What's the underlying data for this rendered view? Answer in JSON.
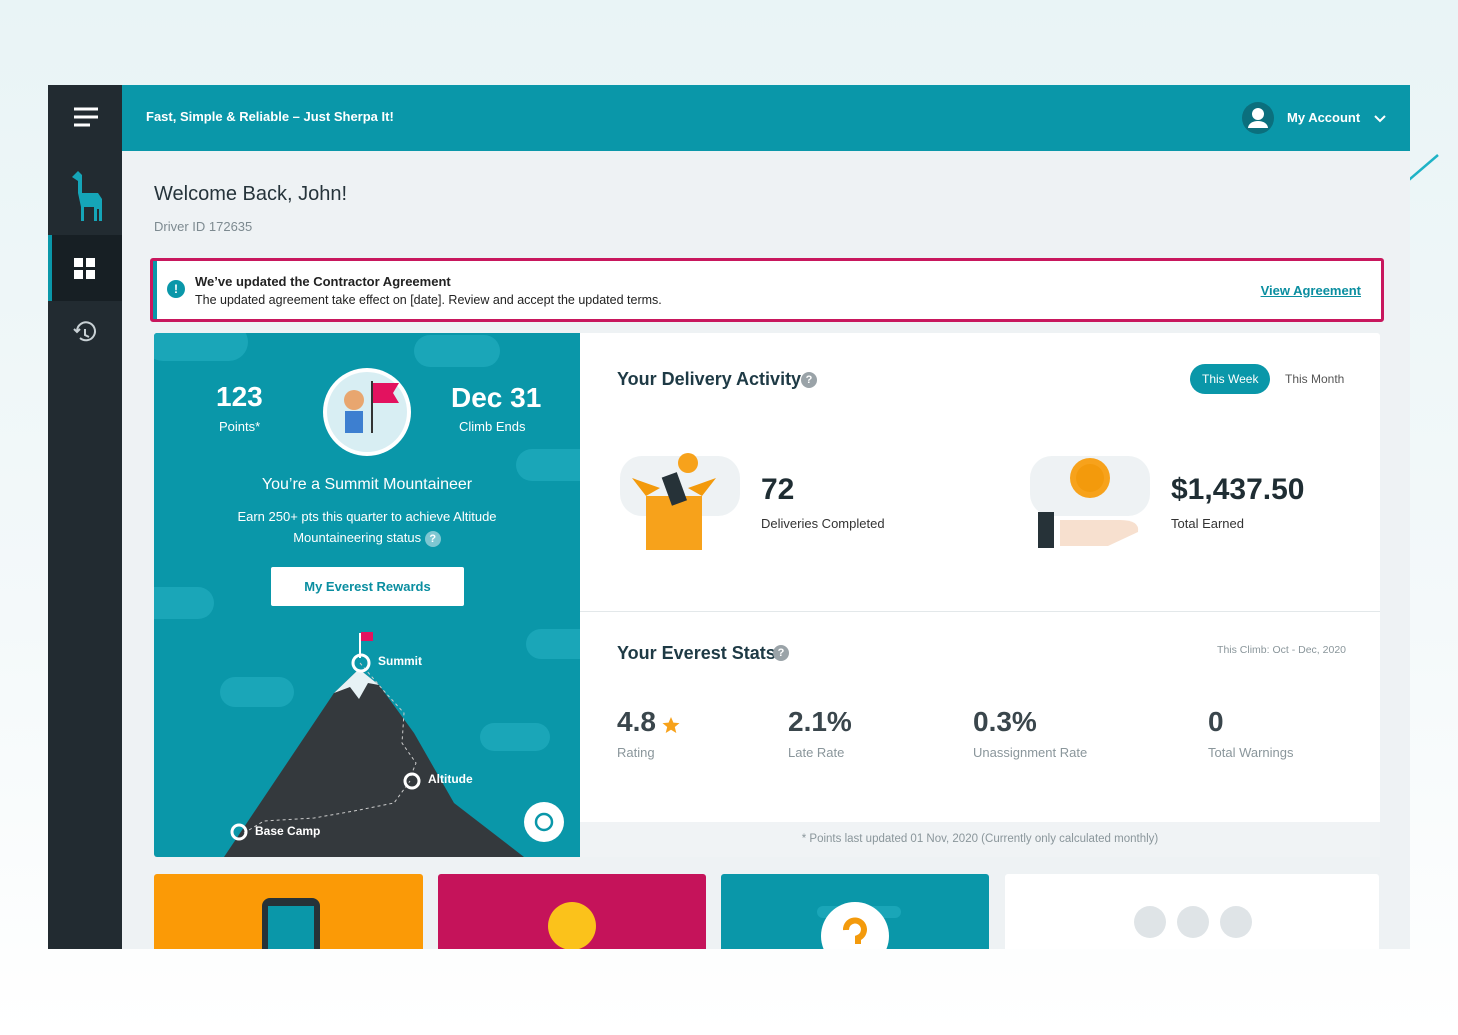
{
  "header": {
    "tagline": "Fast, Simple & Reliable – Just Sherpa It!",
    "account": "My Account"
  },
  "welcome": {
    "title": "Welcome Back, John!",
    "driver_id": "Driver ID 172635"
  },
  "notice": {
    "icon": "!",
    "title": "We’ve updated the Contractor Agreement",
    "body": "The updated agreement take effect on [date]. Review and accept the updated terms.",
    "link": "View Agreement"
  },
  "rank_card": {
    "points": "123",
    "points_label": "Points*",
    "date": "Dec 31",
    "date_label": "Climb Ends",
    "status": "You’re a Summit Mountaineer",
    "message": "Earn 250+ pts this quarter to achieve Altitude Mountaineering status",
    "help_icon": "?",
    "button": "My Everest Rewards",
    "levels": [
      "Summit",
      "Altitude",
      "Base Camp"
    ]
  },
  "delivery": {
    "title": "Your Delivery Activity",
    "help_icon": "?",
    "tabs": [
      "This Week",
      "This Month"
    ],
    "stats": [
      {
        "value": "72",
        "label": "Deliveries Completed"
      },
      {
        "value": "$1,437.50",
        "label": "Total Earned"
      }
    ]
  },
  "everest": {
    "title": "Your Everest Stats",
    "help_icon": "?",
    "period": "This Climb: Oct - Dec, 2020",
    "stats": [
      {
        "value": "4.8",
        "label": "Rating"
      },
      {
        "value": "2.1%",
        "label": "Late Rate"
      },
      {
        "value": "0.3%",
        "label": "Unassignment Rate"
      },
      {
        "value": "0",
        "label": "Total Warnings"
      }
    ],
    "footnote": "* Points last updated 01 Nov, 2020 (Currently only calculated monthly)"
  }
}
